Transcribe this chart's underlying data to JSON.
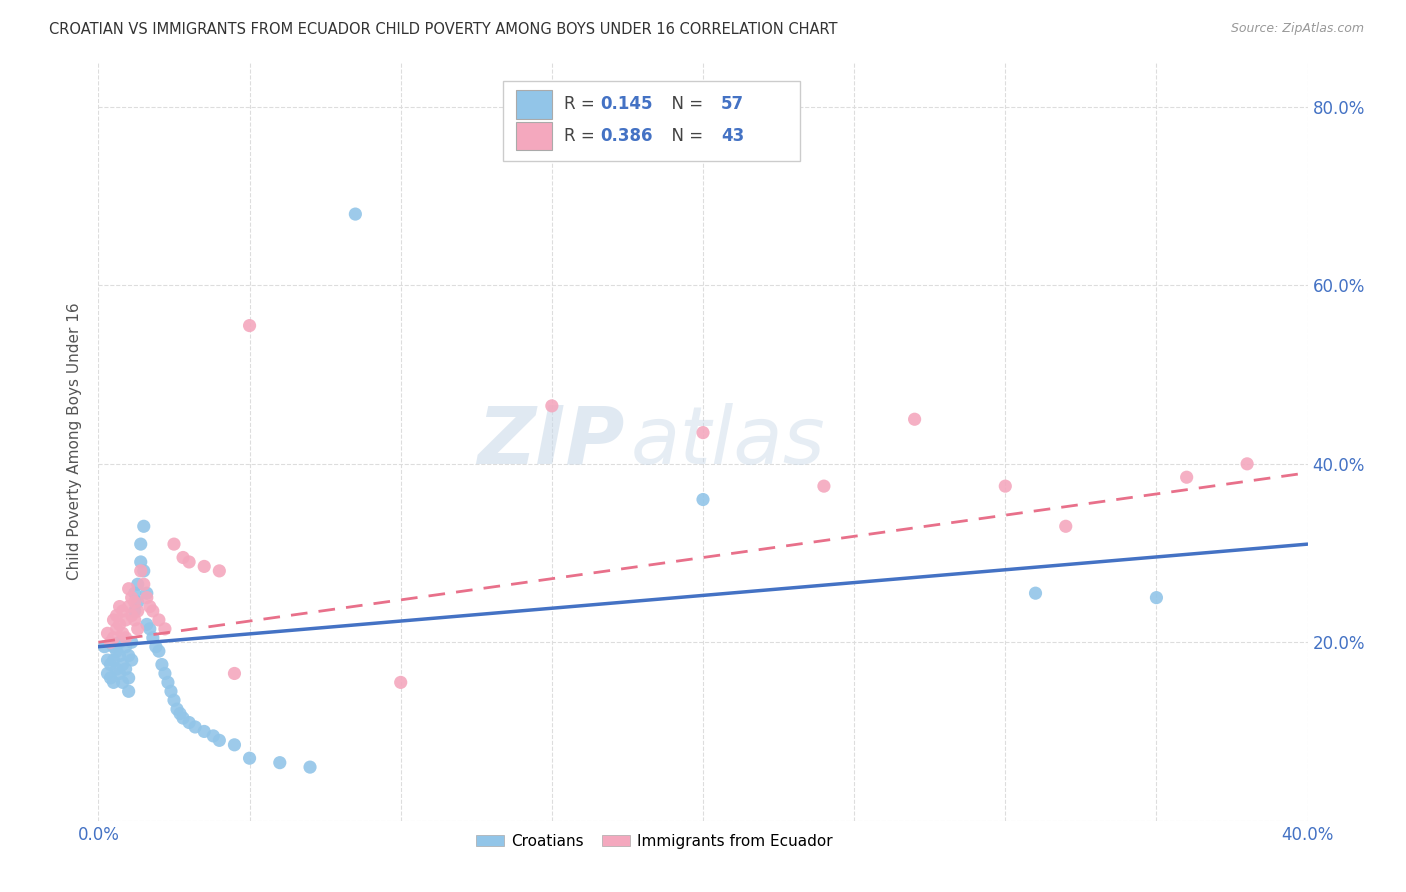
{
  "title": "CROATIAN VS IMMIGRANTS FROM ECUADOR CHILD POVERTY AMONG BOYS UNDER 16 CORRELATION CHART",
  "source": "Source: ZipAtlas.com",
  "ylabel": "Child Poverty Among Boys Under 16",
  "xlim": [
    0.0,
    0.4
  ],
  "ylim": [
    0.0,
    0.85
  ],
  "legend_r1_label": "R = ",
  "legend_r1_val": "0.145",
  "legend_n1_label": "  N = ",
  "legend_n1_val": "57",
  "legend_r2_label": "R = ",
  "legend_r2_val": "0.386",
  "legend_n2_label": "  N = ",
  "legend_n2_val": "43",
  "color_blue": "#92C5E8",
  "color_pink": "#F4A8BE",
  "line_color_blue": "#4472C4",
  "line_color_pink": "#E8708A",
  "watermark_zip": "ZIP",
  "watermark_atlas": "atlas",
  "background_color": "#FFFFFF",
  "grid_color": "#DDDDDD",
  "blue_scatter": [
    [
      0.002,
      0.195
    ],
    [
      0.003,
      0.18
    ],
    [
      0.003,
      0.165
    ],
    [
      0.004,
      0.175
    ],
    [
      0.004,
      0.16
    ],
    [
      0.005,
      0.195
    ],
    [
      0.005,
      0.18
    ],
    [
      0.005,
      0.155
    ],
    [
      0.006,
      0.19
    ],
    [
      0.006,
      0.17
    ],
    [
      0.007,
      0.2
    ],
    [
      0.007,
      0.185
    ],
    [
      0.007,
      0.165
    ],
    [
      0.008,
      0.175
    ],
    [
      0.008,
      0.155
    ],
    [
      0.009,
      0.195
    ],
    [
      0.009,
      0.17
    ],
    [
      0.01,
      0.185
    ],
    [
      0.01,
      0.16
    ],
    [
      0.01,
      0.145
    ],
    [
      0.011,
      0.2
    ],
    [
      0.011,
      0.18
    ],
    [
      0.012,
      0.255
    ],
    [
      0.012,
      0.235
    ],
    [
      0.013,
      0.265
    ],
    [
      0.013,
      0.245
    ],
    [
      0.014,
      0.31
    ],
    [
      0.014,
      0.29
    ],
    [
      0.015,
      0.33
    ],
    [
      0.015,
      0.28
    ],
    [
      0.016,
      0.255
    ],
    [
      0.016,
      0.22
    ],
    [
      0.017,
      0.215
    ],
    [
      0.018,
      0.205
    ],
    [
      0.019,
      0.195
    ],
    [
      0.02,
      0.19
    ],
    [
      0.021,
      0.175
    ],
    [
      0.022,
      0.165
    ],
    [
      0.023,
      0.155
    ],
    [
      0.024,
      0.145
    ],
    [
      0.025,
      0.135
    ],
    [
      0.026,
      0.125
    ],
    [
      0.027,
      0.12
    ],
    [
      0.028,
      0.115
    ],
    [
      0.03,
      0.11
    ],
    [
      0.032,
      0.105
    ],
    [
      0.035,
      0.1
    ],
    [
      0.038,
      0.095
    ],
    [
      0.04,
      0.09
    ],
    [
      0.045,
      0.085
    ],
    [
      0.05,
      0.07
    ],
    [
      0.06,
      0.065
    ],
    [
      0.07,
      0.06
    ],
    [
      0.085,
      0.68
    ],
    [
      0.2,
      0.36
    ],
    [
      0.31,
      0.255
    ],
    [
      0.35,
      0.25
    ]
  ],
  "pink_scatter": [
    [
      0.003,
      0.21
    ],
    [
      0.004,
      0.2
    ],
    [
      0.005,
      0.225
    ],
    [
      0.005,
      0.205
    ],
    [
      0.006,
      0.23
    ],
    [
      0.006,
      0.215
    ],
    [
      0.007,
      0.24
    ],
    [
      0.007,
      0.22
    ],
    [
      0.008,
      0.235
    ],
    [
      0.008,
      0.21
    ],
    [
      0.009,
      0.225
    ],
    [
      0.009,
      0.205
    ],
    [
      0.01,
      0.26
    ],
    [
      0.01,
      0.24
    ],
    [
      0.011,
      0.25
    ],
    [
      0.011,
      0.23
    ],
    [
      0.012,
      0.245
    ],
    [
      0.012,
      0.225
    ],
    [
      0.013,
      0.235
    ],
    [
      0.013,
      0.215
    ],
    [
      0.014,
      0.28
    ],
    [
      0.015,
      0.265
    ],
    [
      0.016,
      0.25
    ],
    [
      0.017,
      0.24
    ],
    [
      0.018,
      0.235
    ],
    [
      0.02,
      0.225
    ],
    [
      0.022,
      0.215
    ],
    [
      0.025,
      0.31
    ],
    [
      0.028,
      0.295
    ],
    [
      0.03,
      0.29
    ],
    [
      0.035,
      0.285
    ],
    [
      0.04,
      0.28
    ],
    [
      0.045,
      0.165
    ],
    [
      0.05,
      0.555
    ],
    [
      0.1,
      0.155
    ],
    [
      0.15,
      0.465
    ],
    [
      0.2,
      0.435
    ],
    [
      0.24,
      0.375
    ],
    [
      0.27,
      0.45
    ],
    [
      0.3,
      0.375
    ],
    [
      0.32,
      0.33
    ],
    [
      0.36,
      0.385
    ],
    [
      0.38,
      0.4
    ]
  ],
  "blue_line": [
    [
      0.0,
      0.195
    ],
    [
      0.4,
      0.31
    ]
  ],
  "pink_line": [
    [
      0.0,
      0.2
    ],
    [
      0.4,
      0.39
    ]
  ]
}
